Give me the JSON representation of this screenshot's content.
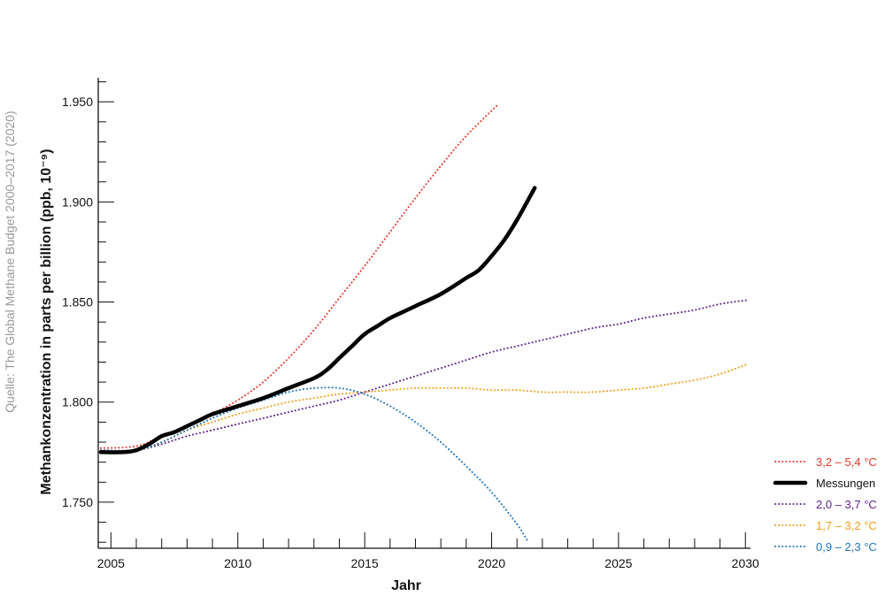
{
  "source_note": "Quelle: The Global Methane Budget 2000–2017 (2020)",
  "chart_data": {
    "type": "line",
    "title": "",
    "xlabel": "Jahr",
    "ylabel": "Methankonzentration in parts per billion (ppb, 10⁻⁹)",
    "xlim": [
      2004.5,
      2030.2
    ],
    "ylim": [
      1727,
      1962
    ],
    "x_ticks": [
      2005,
      2010,
      2015,
      2020,
      2025,
      2030
    ],
    "x_tick_labels": [
      "2005",
      "2010",
      "2015",
      "2020",
      "2025",
      "2030"
    ],
    "y_ticks": [
      1750,
      1800,
      1850,
      1900,
      1950
    ],
    "y_tick_labels": [
      "1.750",
      "1.800",
      "1.850",
      "1.900",
      "1.950"
    ],
    "grid": false,
    "legend_position": "bottom-right",
    "series": [
      {
        "name": "3,2 – 5,4 °C",
        "color": "#e8372c",
        "style": "dotted",
        "points": [
          [
            2004.6,
            1777
          ],
          [
            2006,
            1778
          ],
          [
            2007,
            1783
          ],
          [
            2008,
            1788
          ],
          [
            2009,
            1794
          ],
          [
            2010,
            1801
          ],
          [
            2011,
            1810
          ],
          [
            2012,
            1822
          ],
          [
            2013,
            1836
          ],
          [
            2014,
            1852
          ],
          [
            2015,
            1868
          ],
          [
            2016,
            1885
          ],
          [
            2017,
            1902
          ],
          [
            2018,
            1918
          ],
          [
            2019,
            1933
          ],
          [
            2020.2,
            1948
          ]
        ]
      },
      {
        "name": "Messungen",
        "color": "#000000",
        "style": "solid",
        "points": [
          [
            2004.6,
            1775
          ],
          [
            2005.5,
            1775
          ],
          [
            2006,
            1776
          ],
          [
            2006.5,
            1779
          ],
          [
            2007,
            1783
          ],
          [
            2007.5,
            1785
          ],
          [
            2008,
            1788
          ],
          [
            2008.5,
            1791
          ],
          [
            2009,
            1794
          ],
          [
            2010,
            1798
          ],
          [
            2011,
            1802
          ],
          [
            2012,
            1807
          ],
          [
            2013,
            1812
          ],
          [
            2013.5,
            1816
          ],
          [
            2014,
            1822
          ],
          [
            2014.5,
            1828
          ],
          [
            2015,
            1834
          ],
          [
            2015.5,
            1838
          ],
          [
            2016,
            1842
          ],
          [
            2016.5,
            1845
          ],
          [
            2017,
            1848
          ],
          [
            2018,
            1854
          ],
          [
            2019,
            1862
          ],
          [
            2019.5,
            1866
          ],
          [
            2020,
            1873
          ],
          [
            2020.5,
            1881
          ],
          [
            2021,
            1891
          ],
          [
            2021.7,
            1907
          ]
        ]
      },
      {
        "name": "2,0 – 3,7 °C",
        "color": "#5b1f8c",
        "style": "dotted",
        "points": [
          [
            2004.6,
            1776
          ],
          [
            2006,
            1776
          ],
          [
            2007,
            1779
          ],
          [
            2008,
            1783
          ],
          [
            2009,
            1786
          ],
          [
            2010,
            1789
          ],
          [
            2011,
            1792
          ],
          [
            2012,
            1795
          ],
          [
            2013,
            1798
          ],
          [
            2014,
            1801
          ],
          [
            2015,
            1805
          ],
          [
            2016,
            1809
          ],
          [
            2017,
            1813
          ],
          [
            2018,
            1817
          ],
          [
            2019,
            1821
          ],
          [
            2020,
            1825
          ],
          [
            2021,
            1828
          ],
          [
            2022,
            1831
          ],
          [
            2023,
            1834
          ],
          [
            2024,
            1837
          ],
          [
            2025,
            1839
          ],
          [
            2026,
            1842
          ],
          [
            2027,
            1844
          ],
          [
            2028,
            1846
          ],
          [
            2029,
            1849
          ],
          [
            2030.1,
            1851
          ]
        ]
      },
      {
        "name": "1,7 – 3,2 °C",
        "color": "#f39c12",
        "style": "dotted",
        "points": [
          [
            2004.6,
            1776
          ],
          [
            2006,
            1776
          ],
          [
            2007,
            1780
          ],
          [
            2008,
            1786
          ],
          [
            2009,
            1790
          ],
          [
            2010,
            1794
          ],
          [
            2011,
            1797
          ],
          [
            2012,
            1800
          ],
          [
            2013,
            1802
          ],
          [
            2014,
            1804
          ],
          [
            2015,
            1805
          ],
          [
            2016,
            1806
          ],
          [
            2017,
            1807
          ],
          [
            2018,
            1807
          ],
          [
            2019,
            1807
          ],
          [
            2020,
            1806
          ],
          [
            2021,
            1806
          ],
          [
            2022,
            1805
          ],
          [
            2023,
            1805
          ],
          [
            2024,
            1805
          ],
          [
            2025,
            1806
          ],
          [
            2026,
            1807
          ],
          [
            2027,
            1809
          ],
          [
            2028,
            1811
          ],
          [
            2029,
            1814
          ],
          [
            2030.1,
            1819
          ]
        ]
      },
      {
        "name": "0,9 – 2,3 °C",
        "color": "#1f74bb",
        "style": "dotted",
        "points": [
          [
            2004.6,
            1776
          ],
          [
            2006,
            1776
          ],
          [
            2007,
            1780
          ],
          [
            2008,
            1786
          ],
          [
            2009,
            1792
          ],
          [
            2010,
            1797
          ],
          [
            2011,
            1801
          ],
          [
            2012,
            1805
          ],
          [
            2013,
            1807
          ],
          [
            2014,
            1807
          ],
          [
            2015,
            1804
          ],
          [
            2016,
            1798
          ],
          [
            2017,
            1790
          ],
          [
            2018,
            1780
          ],
          [
            2019,
            1768
          ],
          [
            2020,
            1755
          ],
          [
            2021,
            1739
          ],
          [
            2021.4,
            1731
          ]
        ]
      }
    ]
  },
  "legend_order": [
    0,
    1,
    2,
    3,
    4
  ]
}
